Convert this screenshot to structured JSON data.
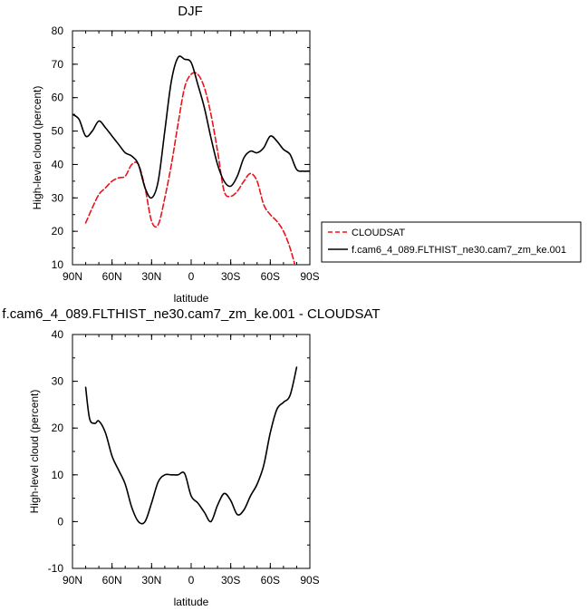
{
  "chart_data": [
    {
      "type": "line",
      "title": "DJF",
      "xlabel": "latitude",
      "ylabel": "High-level cloud (percent)",
      "xlim": [
        90,
        -90
      ],
      "ylim": [
        10,
        80
      ],
      "xticks": [
        {
          "value": 90,
          "label": "90N"
        },
        {
          "value": 60,
          "label": "60N"
        },
        {
          "value": 30,
          "label": "30N"
        },
        {
          "value": 0,
          "label": "0"
        },
        {
          "value": -30,
          "label": "30S"
        },
        {
          "value": -60,
          "label": "60S"
        },
        {
          "value": -90,
          "label": "90S"
        }
      ],
      "yticks": [
        10,
        20,
        30,
        40,
        50,
        60,
        70,
        80
      ],
      "legend_position": "right",
      "series": [
        {
          "name": "CLOUDSAT",
          "color": "#e8141c",
          "dash": "dashed",
          "x": [
            80,
            75,
            70,
            65,
            60,
            55,
            50,
            45,
            40,
            35,
            30,
            25,
            20,
            15,
            10,
            5,
            0,
            -5,
            -10,
            -15,
            -20,
            -25,
            -30,
            -35,
            -40,
            -45,
            -50,
            -55,
            -60,
            -65,
            -70,
            -75,
            -80
          ],
          "y": [
            22.5,
            27,
            31,
            33,
            35,
            36,
            36.5,
            40,
            40,
            33,
            23,
            22,
            30,
            40,
            52,
            63,
            67,
            67,
            63,
            55,
            44,
            32,
            30.5,
            32,
            35,
            37.3,
            35,
            28,
            25,
            23,
            20,
            15,
            8
          ]
        },
        {
          "name": "f.cam6_4_089.FLTHIST_ne30.cam7_zm_ke.001",
          "color": "#000000",
          "dash": "solid",
          "x": [
            90,
            85,
            80,
            75,
            70,
            65,
            60,
            55,
            50,
            45,
            40,
            35,
            30,
            25,
            20,
            15,
            10,
            5,
            0,
            -5,
            -10,
            -15,
            -20,
            -25,
            -30,
            -35,
            -40,
            -45,
            -50,
            -55,
            -60,
            -65,
            -70,
            -75,
            -80,
            -85,
            -90
          ],
          "y": [
            55,
            53.5,
            48.5,
            50,
            53,
            51,
            48.5,
            46,
            43.5,
            42.5,
            40,
            33,
            30,
            35,
            50,
            65,
            72,
            71.5,
            70.5,
            64,
            57,
            48,
            40,
            35,
            33.5,
            36.5,
            42,
            44,
            43.5,
            45,
            48.5,
            47,
            44.5,
            43,
            38.5,
            38,
            38
          ]
        }
      ]
    },
    {
      "type": "line",
      "title": "f.cam6_4_089.FLTHIST_ne30.cam7_zm_ke.001 - CLOUDSAT",
      "xlabel": "latitude",
      "ylabel": "High-level cloud (percent)",
      "xlim": [
        90,
        -90
      ],
      "ylim": [
        -10,
        40
      ],
      "xticks": [
        {
          "value": 90,
          "label": "90N"
        },
        {
          "value": 60,
          "label": "60N"
        },
        {
          "value": 30,
          "label": "30N"
        },
        {
          "value": 0,
          "label": "0"
        },
        {
          "value": -30,
          "label": "30S"
        },
        {
          "value": -60,
          "label": "60S"
        },
        {
          "value": -90,
          "label": "90S"
        }
      ],
      "yticks": [
        -10,
        0,
        10,
        20,
        30,
        40
      ],
      "series": [
        {
          "color": "#000000",
          "dash": "solid",
          "x": [
            80,
            77,
            73,
            70,
            65,
            60,
            55,
            50,
            45,
            40,
            35,
            30,
            25,
            20,
            15,
            10,
            5,
            0,
            -5,
            -10,
            -15,
            -20,
            -25,
            -30,
            -35,
            -40,
            -45,
            -50,
            -55,
            -60,
            -65,
            -70,
            -75,
            -80
          ],
          "y": [
            28.7,
            22,
            21,
            21.5,
            19,
            14,
            11,
            8,
            3,
            0,
            0,
            4,
            8.5,
            10,
            10,
            10,
            10.3,
            5.5,
            4,
            2,
            0,
            3.5,
            6,
            4.5,
            1.5,
            2.5,
            5.5,
            8,
            12,
            19,
            24,
            25.5,
            27,
            33
          ]
        }
      ]
    }
  ]
}
